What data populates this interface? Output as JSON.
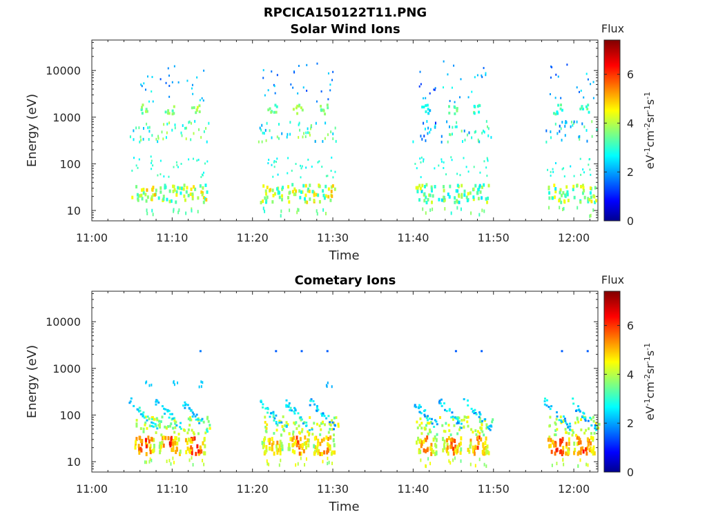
{
  "figure_title": "RPCICA150122T11.PNG",
  "colorscale": {
    "title": "Flux",
    "ticks": [
      "0",
      "2",
      "4",
      "6"
    ],
    "range": [
      0,
      7.4
    ],
    "colormap": "jet",
    "units_label": "eV-1cm-2sr-1s-1"
  },
  "chart_data": [
    {
      "type": "heatmap",
      "title": "Solar Wind Ions",
      "xlabel": "Time",
      "ylabel": "Energy (eV)",
      "x_ticks": [
        "11:00",
        "11:10",
        "11:20",
        "11:30",
        "11:40",
        "11:50",
        "12:00"
      ],
      "y_ticks": [
        "10",
        "100",
        "1000",
        "10000"
      ],
      "y_scale": "log",
      "ylim": [
        6,
        45000
      ],
      "xlim_minutes": [
        0,
        63
      ],
      "units": {
        "x": "minutes after 11:00",
        "y": "eV"
      },
      "bursts": [
        {
          "t": 6.4,
          "low_flux": 5.2,
          "mid_flux": 4.2,
          "high_flux": 3.0
        },
        {
          "t": 9.6,
          "low_flux": 4.8,
          "mid_flux": 4.2,
          "high_flux": 2.6
        },
        {
          "t": 12.8,
          "low_flux": 5.0,
          "mid_flux": 4.6,
          "high_flux": 3.0
        },
        {
          "t": 22.4,
          "low_flux": 5.0,
          "mid_flux": 4.0,
          "high_flux": 2.6
        },
        {
          "t": 25.6,
          "low_flux": 5.0,
          "mid_flux": 4.2,
          "high_flux": 2.6
        },
        {
          "t": 28.8,
          "low_flux": 5.2,
          "mid_flux": 4.0,
          "high_flux": 2.8
        },
        {
          "t": 41.6,
          "low_flux": 4.6,
          "mid_flux": 3.2,
          "high_flux": 2.4
        },
        {
          "t": 44.8,
          "low_flux": 4.4,
          "mid_flux": 3.8,
          "high_flux": 3.0
        },
        {
          "t": 48.0,
          "low_flux": 4.6,
          "mid_flux": 3.8,
          "high_flux": 2.8
        },
        {
          "t": 58.0,
          "low_flux": 4.8,
          "mid_flux": 3.6,
          "high_flux": 2.6
        },
        {
          "t": 61.2,
          "low_flux": 4.8,
          "mid_flux": 3.8,
          "high_flux": 2.8
        }
      ]
    },
    {
      "type": "heatmap",
      "title": "Cometary Ions",
      "xlabel": "Time",
      "ylabel": "Energy (eV)",
      "x_ticks": [
        "11:00",
        "11:10",
        "11:20",
        "11:30",
        "11:40",
        "11:50",
        "12:00"
      ],
      "y_ticks": [
        "10",
        "100",
        "1000",
        "10000"
      ],
      "y_scale": "log",
      "ylim": [
        6,
        45000
      ],
      "xlim_minutes": [
        0,
        63
      ],
      "units": {
        "x": "minutes after 11:00",
        "y": "eV"
      },
      "bursts": [
        {
          "t": 6.4,
          "low_flux": 6.8,
          "mid_flux": 3.2,
          "high_flux": 1.8
        },
        {
          "t": 9.6,
          "low_flux": 6.8,
          "mid_flux": 3.2,
          "high_flux": 1.8
        },
        {
          "t": 12.8,
          "low_flux": 6.8,
          "mid_flux": 3.2,
          "high_flux": 1.8
        },
        {
          "t": 22.4,
          "low_flux": 6.2,
          "mid_flux": 3.2,
          "high_flux": 1.6
        },
        {
          "t": 25.6,
          "low_flux": 6.4,
          "mid_flux": 3.2,
          "high_flux": 1.6
        },
        {
          "t": 28.8,
          "low_flux": 6.4,
          "mid_flux": 3.0,
          "high_flux": 1.6
        },
        {
          "t": 41.6,
          "low_flux": 6.4,
          "mid_flux": 3.0,
          "high_flux": 1.6
        },
        {
          "t": 44.8,
          "low_flux": 6.4,
          "mid_flux": 3.0,
          "high_flux": 1.6
        },
        {
          "t": 48.0,
          "low_flux": 6.6,
          "mid_flux": 3.0,
          "high_flux": 1.6
        },
        {
          "t": 58.0,
          "low_flux": 7.0,
          "mid_flux": 3.0,
          "high_flux": 1.6
        },
        {
          "t": 61.2,
          "low_flux": 6.8,
          "mid_flux": 3.0,
          "high_flux": 1.6
        }
      ]
    }
  ]
}
